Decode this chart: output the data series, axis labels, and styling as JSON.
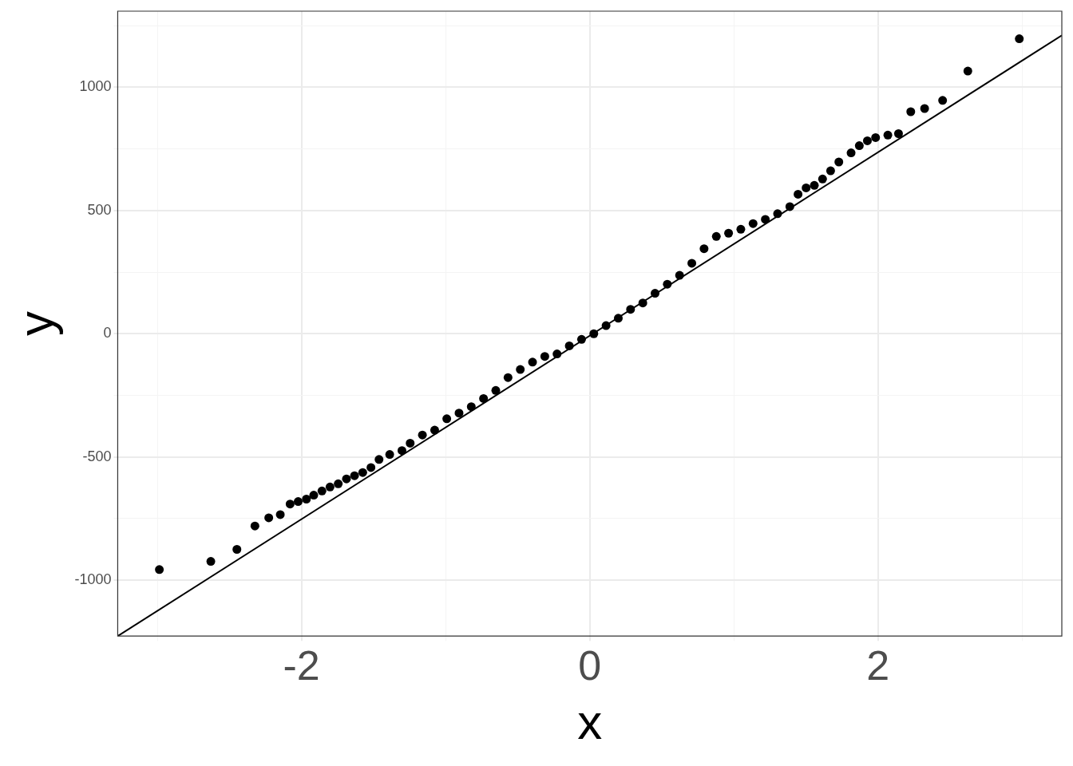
{
  "chart_data": {
    "type": "scatter",
    "xlabel": "x",
    "ylabel": "y",
    "xlim": [
      -3.275,
      3.275
    ],
    "ylim": [
      -1227,
      1309
    ],
    "xticks": [
      {
        "value": -3,
        "label": null
      },
      -2,
      {
        "value": -1,
        "label": null
      },
      0,
      {
        "value": 1,
        "label": null
      },
      2,
      {
        "value": 3,
        "label": null
      }
    ],
    "yticks": [
      {
        "value": -1000,
        "label": "-1000"
      },
      {
        "value": -750,
        "label": null
      },
      {
        "value": -500,
        "label": "-500"
      },
      {
        "value": -250,
        "label": null
      },
      0,
      {
        "value": 250,
        "label": null
      },
      500,
      {
        "value": 750,
        "label": null
      },
      1000,
      {
        "value": 1250,
        "label": null
      }
    ],
    "grid": true,
    "marker": "circle",
    "series": [
      {
        "color": "#000000",
        "x": [
          -2.986,
          -2.629,
          -2.448,
          -2.323,
          -2.227,
          -2.147,
          -2.079,
          -2.023,
          -1.966,
          -1.915,
          -1.858,
          -1.802,
          -1.745,
          -1.688,
          -1.632,
          -1.575,
          -1.518,
          -1.462,
          -1.388,
          -1.303,
          -1.246,
          -1.161,
          -1.076,
          -0.992,
          -0.907,
          -0.822,
          -0.737,
          -0.652,
          -0.567,
          -0.482,
          -0.397,
          -0.312,
          -0.227,
          -0.142,
          -0.057,
          0.028,
          0.113,
          0.198,
          0.283,
          0.368,
          0.453,
          0.538,
          0.623,
          0.708,
          0.793,
          0.878,
          0.963,
          1.048,
          1.133,
          1.218,
          1.303,
          1.388,
          1.445,
          1.501,
          1.558,
          1.615,
          1.671,
          1.728,
          1.813,
          1.87,
          1.926,
          1.983,
          2.068,
          2.142,
          2.227,
          2.323,
          2.448,
          2.623,
          2.98
        ],
        "values": [
          -957,
          -924,
          -875,
          -780,
          -747,
          -734,
          -691,
          -681,
          -671,
          -655,
          -638,
          -622,
          -609,
          -589,
          -576,
          -563,
          -543,
          -510,
          -490,
          -474,
          -444,
          -411,
          -391,
          -345,
          -322,
          -296,
          -263,
          -230,
          -178,
          -145,
          -115,
          -92,
          -82,
          -49,
          -23,
          0,
          33,
          63,
          99,
          125,
          164,
          201,
          237,
          286,
          345,
          395,
          408,
          424,
          447,
          464,
          487,
          516,
          566,
          592,
          602,
          628,
          661,
          697,
          734,
          763,
          783,
          796,
          806,
          812,
          901,
          914,
          947,
          1066,
          1197
        ]
      },
      {
        "type": "line",
        "color": "#000000",
        "marker": "none",
        "line_style": "solid",
        "x": [
          -3.275,
          3.275
        ],
        "values": [
          -1227,
          1211
        ]
      }
    ]
  }
}
